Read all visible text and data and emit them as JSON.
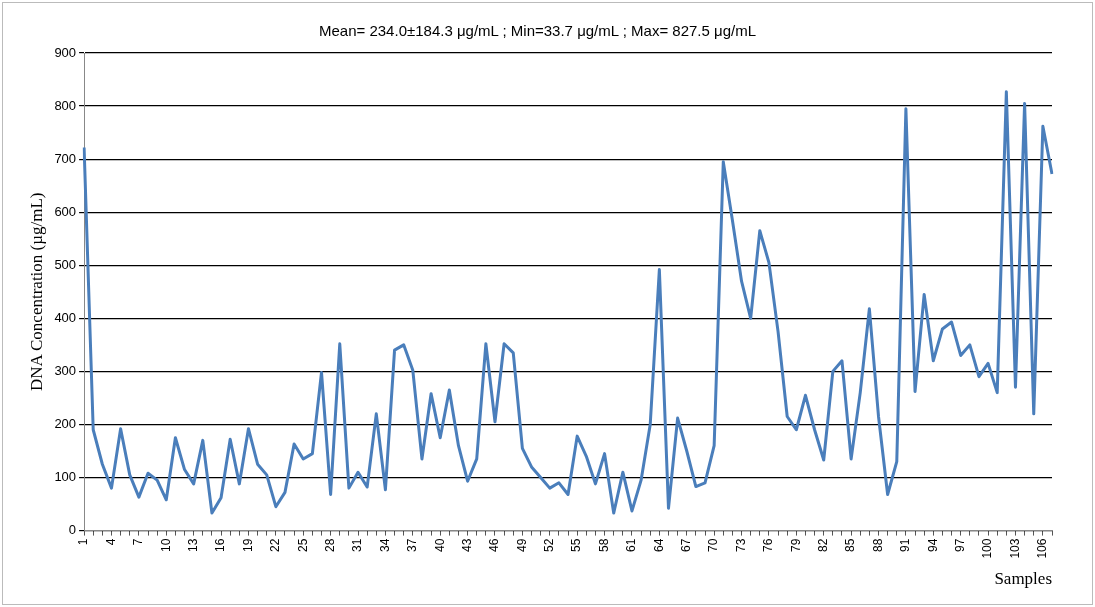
{
  "chart_data": {
    "type": "line",
    "title": "Mean= 234.0±184.3 μg/mL ; Min=33.7 μg/mL ; Max= 827.5 μg/mL",
    "xlabel": "Samples",
    "ylabel": "DNA Concentration (µg/mL)",
    "categories": [
      "1",
      null,
      null,
      "4",
      null,
      null,
      "7",
      null,
      null,
      "10",
      null,
      null,
      "13",
      null,
      null,
      "16",
      null,
      null,
      "19",
      null,
      null,
      "22",
      null,
      null,
      "25",
      null,
      null,
      "28",
      null,
      null,
      "31",
      null,
      null,
      "34",
      null,
      null,
      "37",
      null,
      null,
      "40",
      null,
      null,
      "43",
      null,
      null,
      "46",
      null,
      null,
      "49",
      null,
      null,
      "52",
      null,
      null,
      "55",
      null,
      null,
      "58",
      null,
      null,
      "61",
      null,
      null,
      "64",
      null,
      null,
      "67",
      null,
      null,
      "70",
      null,
      null,
      "73",
      null,
      null,
      "76",
      null,
      null,
      "79",
      null,
      null,
      "82",
      null,
      null,
      "85",
      null,
      null,
      "88",
      null,
      null,
      "91",
      null,
      null,
      "94",
      null,
      null,
      "97",
      null,
      null,
      "100",
      null,
      null,
      "103",
      null,
      null,
      "106",
      null
    ],
    "series": [
      {
        "color": "#4a7ebb",
        "values": [
          722,
          190,
          125,
          80,
          192,
          105,
          63,
          108,
          95,
          58,
          175,
          115,
          88,
          170,
          33,
          62,
          172,
          88,
          192,
          125,
          105,
          45,
          72,
          163,
          135,
          145,
          298,
          68,
          352,
          80,
          110,
          82,
          220,
          77,
          340,
          350,
          302,
          135,
          258,
          175,
          265,
          160,
          93,
          135,
          352,
          205,
          352,
          335,
          155,
          120,
          100,
          80,
          90,
          68,
          178,
          140,
          88,
          145,
          33,
          110,
          37,
          95,
          200,
          492,
          42,
          212,
          150,
          83,
          90,
          160,
          695,
          585,
          470,
          400,
          565,
          505,
          375,
          215,
          190,
          255,
          190,
          133,
          300,
          320,
          135,
          260,
          418,
          215,
          68,
          130,
          795,
          262,
          445,
          320,
          380,
          393,
          330,
          350,
          290,
          315,
          260,
          827,
          270,
          805,
          220,
          762,
          672
        ]
      }
    ],
    "ylim": [
      0,
      900
    ],
    "yticks": [
      0,
      100,
      200,
      300,
      400,
      500,
      600,
      700,
      800,
      900
    ],
    "grid": "y",
    "legend": false,
    "marker": "none",
    "line_style": "solid"
  }
}
